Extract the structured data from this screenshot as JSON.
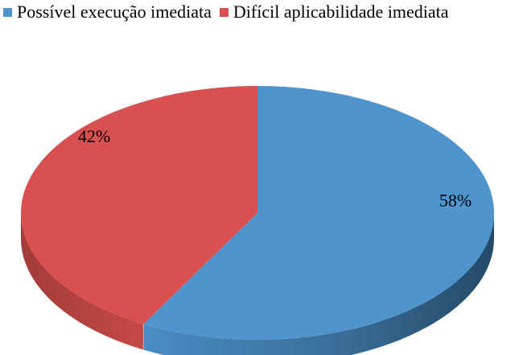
{
  "chart_data": {
    "type": "pie",
    "style": "3d",
    "title": "",
    "legend_position": "top-left",
    "series": [
      {
        "name": "Possível execução imediata",
        "value": 58,
        "label": "58%",
        "color": "#4F94CD"
      },
      {
        "name": "Difícil aplicabilidade imediata",
        "value": 42,
        "label": "42%",
        "color": "#D95050"
      }
    ]
  }
}
